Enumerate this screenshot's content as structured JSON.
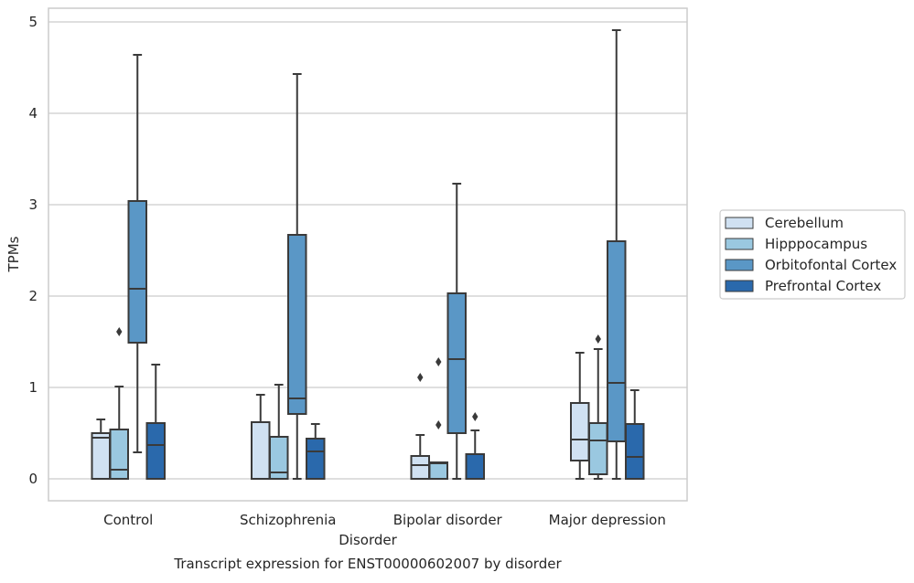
{
  "chart_data": {
    "type": "box",
    "title": "",
    "caption": "Transcript expression for ENST00000602007 by disorder",
    "xlabel": "Disorder",
    "ylabel": "TPMs",
    "ylim": [
      -0.24,
      5.16
    ],
    "yticks": [
      0,
      1,
      2,
      3,
      4,
      5
    ],
    "grid": true,
    "legend_position": "right",
    "categories": [
      "Control",
      "Schizophrenia",
      "Bipolar disorder",
      "Major depression"
    ],
    "series": [
      {
        "name": "Cerebellum",
        "color": "#d0e1f2",
        "boxes": [
          {
            "whislo": 0,
            "q1": 0,
            "med": 0.45,
            "q3": 0.5,
            "whishi": 0.65,
            "fliers": []
          },
          {
            "whislo": 0,
            "q1": 0,
            "med": 0,
            "q3": 0.62,
            "whishi": 0.92,
            "fliers": []
          },
          {
            "whislo": 0,
            "q1": 0,
            "med": 0.15,
            "q3": 0.25,
            "whishi": 0.48,
            "fliers": [
              1.11
            ]
          },
          {
            "whislo": 0,
            "q1": 0.2,
            "med": 0.43,
            "q3": 0.83,
            "whishi": 1.38,
            "fliers": []
          }
        ]
      },
      {
        "name": "Hipppocampus",
        "color": "#9ac8e0",
        "boxes": [
          {
            "whislo": 0,
            "q1": 0,
            "med": 0.1,
            "q3": 0.54,
            "whishi": 1.01,
            "fliers": [
              1.61
            ]
          },
          {
            "whislo": 0,
            "q1": 0,
            "med": 0.07,
            "q3": 0.46,
            "whishi": 1.03,
            "fliers": []
          },
          {
            "whislo": 0,
            "q1": 0,
            "med": 0.17,
            "q3": 0.18,
            "whishi": 0.18,
            "fliers": [
              0.59,
              1.28
            ]
          },
          {
            "whislo": 0,
            "q1": 0.05,
            "med": 0.42,
            "q3": 0.61,
            "whishi": 1.42,
            "fliers": [
              1.53
            ]
          }
        ]
      },
      {
        "name": "Orbitofontal Cortex",
        "color": "#5a97c6",
        "boxes": [
          {
            "whislo": 0.29,
            "q1": 1.49,
            "med": 2.08,
            "q3": 3.04,
            "whishi": 4.64,
            "fliers": []
          },
          {
            "whislo": 0,
            "q1": 0.71,
            "med": 0.88,
            "q3": 2.67,
            "whishi": 4.43,
            "fliers": []
          },
          {
            "whislo": 0,
            "q1": 0.5,
            "med": 1.31,
            "q3": 2.03,
            "whishi": 3.23,
            "fliers": []
          },
          {
            "whislo": 0,
            "q1": 0.41,
            "med": 1.05,
            "q3": 2.6,
            "whishi": 4.91,
            "fliers": []
          }
        ]
      },
      {
        "name": "Prefrontal Cortex",
        "color": "#2a69ac",
        "boxes": [
          {
            "whislo": 0,
            "q1": 0,
            "med": 0.37,
            "q3": 0.61,
            "whishi": 1.25,
            "fliers": []
          },
          {
            "whislo": 0,
            "q1": 0,
            "med": 0.3,
            "q3": 0.44,
            "whishi": 0.6,
            "fliers": []
          },
          {
            "whislo": 0,
            "q1": 0,
            "med": 0,
            "q3": 0.27,
            "whishi": 0.53,
            "fliers": [
              0.68
            ]
          },
          {
            "whislo": 0,
            "q1": 0,
            "med": 0.24,
            "q3": 0.6,
            "whishi": 0.97,
            "fliers": []
          }
        ]
      }
    ]
  }
}
